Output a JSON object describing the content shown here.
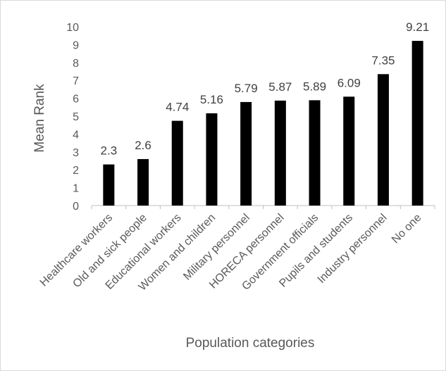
{
  "chart_data": {
    "type": "bar",
    "title": "",
    "xlabel": "Population categories",
    "ylabel": "Mean Rank",
    "ylim": [
      0,
      10
    ],
    "yticks": [
      0,
      1,
      2,
      3,
      4,
      5,
      6,
      7,
      8,
      9,
      10
    ],
    "grid": false,
    "legend": "none",
    "bar_color": "#000000",
    "categories": [
      "Healthcare workers",
      "Old and sick people",
      "Educational workers",
      "Women and children",
      "Military personnel",
      "HORECA personnel",
      "Government officials",
      "Pupils and students",
      "Industry personnel",
      "No one"
    ],
    "values": [
      2.3,
      2.6,
      4.74,
      5.16,
      5.79,
      5.87,
      5.89,
      6.09,
      7.35,
      9.21
    ],
    "data_labels": [
      "2.3",
      "2.6",
      "4.74",
      "5.16",
      "5.79",
      "5.87",
      "5.89",
      "6.09",
      "7.35",
      "9.21"
    ]
  }
}
